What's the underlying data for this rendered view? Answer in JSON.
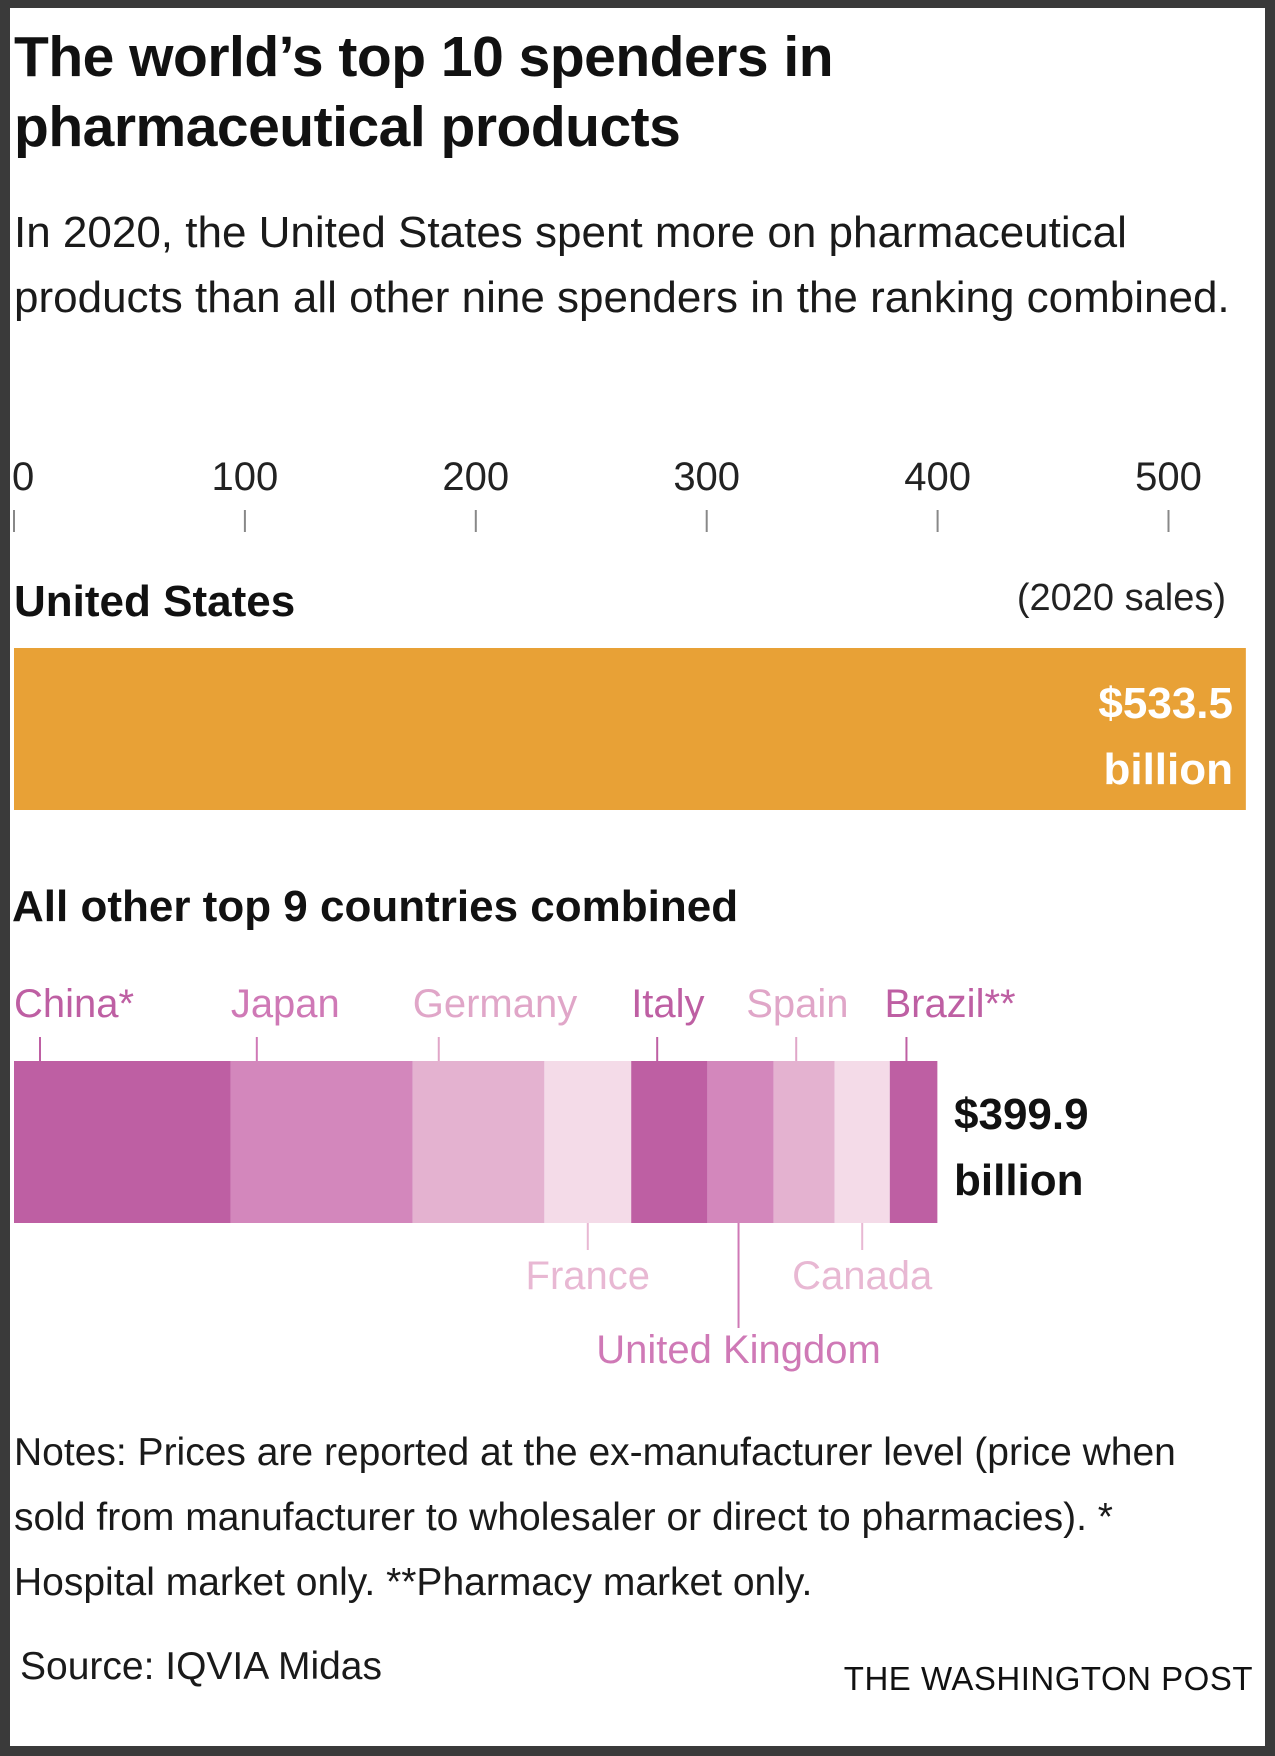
{
  "header": {
    "title": "The world’s top 10 spenders in pharmaceutical products",
    "subtitle": "In 2020, the United States spent more on pharmaceutical products than all other nine spenders in the ranking combined."
  },
  "chart_data": {
    "type": "bar",
    "title": "The world’s top 10 spenders in pharmaceutical products",
    "unit": "billion USD (2020 sales)",
    "axis": {
      "ticks": [
        0,
        100,
        200,
        300,
        400,
        500
      ],
      "range": [
        0,
        533.5
      ]
    },
    "us": {
      "label": "United States",
      "value": 533.5,
      "note": "(2020 sales)",
      "value_label_1": "$533.5",
      "value_label_2": "billion",
      "color": "#e8a136"
    },
    "others": {
      "label": "All other top 9 countries combined",
      "total": 399.9,
      "total_label_1": "$399.9",
      "total_label_2": "billion",
      "segments": [
        {
          "name": "China*",
          "value": 93.9,
          "color": "#be5fa3",
          "text_color": "#be5fa3",
          "label_side": "top"
        },
        {
          "name": "Japan",
          "value": 78.8,
          "color": "#d387bc",
          "text_color": "#cf79b6",
          "label_side": "top"
        },
        {
          "name": "Germany",
          "value": 57.0,
          "color": "#e4b2d0",
          "text_color": "#e0a6c8",
          "label_side": "top"
        },
        {
          "name": "France",
          "value": 37.6,
          "color": "#f4dbe8",
          "text_color": "#e8b8d3",
          "label_side": "bottom"
        },
        {
          "name": "Italy",
          "value": 33.0,
          "color": "#be5fa3",
          "text_color": "#be5fa3",
          "label_side": "top"
        },
        {
          "name": "United Kingdom",
          "value": 28.7,
          "color": "#d387bc",
          "text_color": "#cf79b6",
          "label_side": "bottom"
        },
        {
          "name": "Spain",
          "value": 26.4,
          "color": "#e4b2d0",
          "text_color": "#e0a6c8",
          "label_side": "top"
        },
        {
          "name": "Canada",
          "value": 23.9,
          "color": "#f4dbe8",
          "text_color": "#e8b8d3",
          "label_side": "bottom"
        },
        {
          "name": "Brazil**",
          "value": 20.6,
          "color": "#be5fa3",
          "text_color": "#be5fa3",
          "label_side": "top"
        }
      ]
    }
  },
  "footer": {
    "notes": "Notes: Prices are reported at the ex-manufacturer level (price when sold from manufacturer to wholesaler or direct to pharmacies). * Hospital market only. **Pharmacy market only.",
    "source": "Source: IQVIA Midas",
    "credit": "THE WASHINGTON POST"
  }
}
